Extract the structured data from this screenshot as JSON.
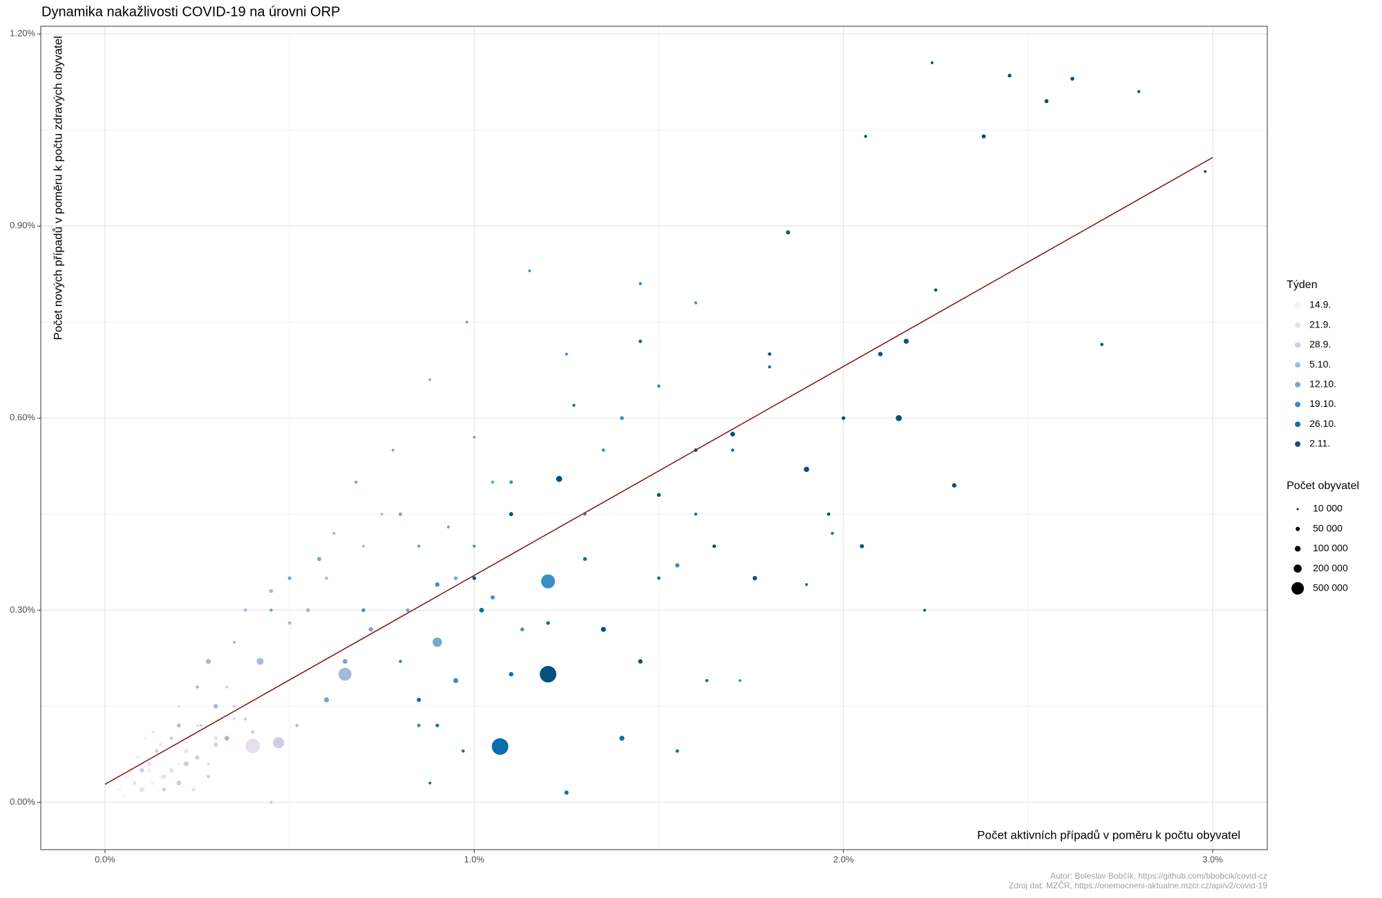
{
  "chart_data": {
    "type": "scatter",
    "title": "Dynamika nakažlivosti COVID-19 na úrovni ORP",
    "x_label": "Počet aktivních případů v poměru k počtu obyvatel",
    "y_label": "Počet nových případů v poměru k počtu zdravých obyvatel",
    "caption": [
      "Autor: Boleslav Bobčík, https://github.com/bbobcik/covid-cz",
      "Zdroj dat: MZČR, https://onemocneni-aktualne.mzcr.cz/api/v2/covid-19"
    ],
    "xlim": [
      -0.174,
      3.148
    ],
    "ylim": [
      -0.074,
      1.212
    ],
    "xticks": [
      {
        "value": 0,
        "label": "0.0%"
      },
      {
        "value": 1,
        "label": "1.0%"
      },
      {
        "value": 2,
        "label": "2.0%"
      },
      {
        "value": 3,
        "label": "3.0%"
      }
    ],
    "yticks": [
      {
        "value": 0,
        "label": "0.00%"
      },
      {
        "value": 0.3,
        "label": "0.30%"
      },
      {
        "value": 0.6,
        "label": "0.60%"
      },
      {
        "value": 0.9,
        "label": "0.90%"
      },
      {
        "value": 1.2,
        "label": "1.20%"
      }
    ],
    "minor_xticks": [
      0.5,
      1.5,
      2.5
    ],
    "minor_yticks": [
      0.15,
      0.45,
      0.75,
      1.05
    ],
    "grid": true,
    "legend_title": "Týden",
    "size_legend": {
      "title": "Počet obyvatel",
      "values": [
        {
          "value": 10000,
          "label": "10 000"
        },
        {
          "value": 50000,
          "label": "50 000"
        },
        {
          "value": 100000,
          "label": "100 000"
        },
        {
          "value": 200000,
          "label": "200 000"
        },
        {
          "value": 500000,
          "label": "500 000"
        }
      ]
    },
    "trend": {
      "color": "#8b1a1a",
      "x": [
        0,
        3.0
      ],
      "y": [
        0.028,
        1.007
      ]
    },
    "series": [
      {
        "name": "14.9.",
        "color": "#f7f0f8",
        "x": [
          0.04,
          0.06,
          0.08,
          0.1,
          0.12,
          0.14,
          0.05,
          0.09,
          0.15,
          0.18,
          0.07,
          0.11,
          0.2,
          0.13
        ],
        "values": [
          0.02,
          0.04,
          0.03,
          0.06,
          0.05,
          0.08,
          0.01,
          0.07,
          0.04,
          0.09,
          0.05,
          0.1,
          0.06,
          0.03
        ],
        "sizes": [
          12000,
          20000,
          8000,
          15000,
          30000,
          10000,
          9000,
          25000,
          14000,
          11000,
          40000,
          16000,
          13000,
          22000
        ]
      },
      {
        "name": "21.9.",
        "color": "#e6e0ee",
        "x": [
          0.08,
          0.12,
          0.15,
          0.18,
          0.22,
          0.25,
          0.3,
          0.1,
          0.2,
          0.28,
          0.35,
          0.16,
          0.4,
          0.24,
          0.13
        ],
        "values": [
          0.03,
          0.06,
          0.09,
          0.05,
          0.08,
          0.12,
          0.1,
          0.02,
          0.15,
          0.06,
          0.13,
          0.04,
          0.088,
          0.02,
          0.11
        ],
        "sizes": [
          15000,
          25000,
          12000,
          30000,
          18000,
          10000,
          22000,
          40000,
          14000,
          16000,
          12000,
          35000,
          380000,
          20000,
          11000
        ]
      },
      {
        "name": "28.9.",
        "color": "#cfcce4",
        "x": [
          0.1,
          0.14,
          0.18,
          0.22,
          0.26,
          0.3,
          0.35,
          0.4,
          0.45,
          0.47,
          0.2,
          0.28,
          0.33,
          0.16,
          0.38,
          0.25
        ],
        "values": [
          0.05,
          0.08,
          0.1,
          0.06,
          0.12,
          0.09,
          0.15,
          0.11,
          0.0,
          0.093,
          0.03,
          0.04,
          0.18,
          0.02,
          0.13,
          0.07
        ],
        "sizes": [
          30000,
          20000,
          15000,
          40000,
          12000,
          25000,
          10000,
          18000,
          14000,
          220000,
          35000,
          16000,
          11000,
          20000,
          13000,
          28000
        ]
      },
      {
        "name": "5.10.",
        "color": "#a7b9d9",
        "x": [
          0.2,
          0.25,
          0.3,
          0.35,
          0.42,
          0.5,
          0.55,
          0.6,
          0.65,
          0.7,
          0.38,
          0.45,
          0.28,
          0.52,
          0.75,
          0.33,
          0.62
        ],
        "values": [
          0.12,
          0.18,
          0.15,
          0.25,
          0.22,
          0.28,
          0.3,
          0.35,
          0.2,
          0.4,
          0.3,
          0.33,
          0.22,
          0.12,
          0.45,
          0.1,
          0.42
        ],
        "sizes": [
          20000,
          15000,
          30000,
          12000,
          80000,
          18000,
          25000,
          14000,
          300000,
          11000,
          16000,
          22000,
          40000,
          13000,
          10000,
          35000,
          12000
        ]
      },
      {
        "name": "12.10.",
        "color": "#77a6cf",
        "x": [
          0.45,
          0.5,
          0.6,
          0.68,
          0.72,
          0.8,
          0.85,
          0.9,
          0.95,
          1.0,
          1.05,
          0.78,
          0.88,
          0.58,
          0.98,
          0.65,
          0.82,
          0.93
        ],
        "values": [
          0.3,
          0.35,
          0.16,
          0.5,
          0.27,
          0.45,
          0.4,
          0.25,
          0.35,
          0.57,
          0.5,
          0.55,
          0.66,
          0.38,
          0.75,
          0.22,
          0.3,
          0.43
        ],
        "sizes": [
          15000,
          20000,
          40000,
          12000,
          30000,
          18000,
          14000,
          150000,
          22000,
          11000,
          16000,
          10000,
          9000,
          25000,
          10000,
          35000,
          20000,
          13000
        ]
      },
      {
        "name": "19.10.",
        "color": "#3a8fc2",
        "x": [
          0.7,
          0.8,
          0.9,
          1.0,
          1.05,
          1.1,
          1.15,
          1.2,
          1.3,
          1.4,
          1.5,
          1.6,
          0.95,
          1.13,
          1.25,
          1.45,
          1.72,
          0.85,
          1.35,
          1.55
        ],
        "values": [
          0.3,
          0.22,
          0.34,
          0.4,
          0.32,
          0.5,
          0.83,
          0.345,
          0.45,
          0.6,
          0.65,
          0.78,
          0.19,
          0.27,
          0.7,
          0.81,
          0.19,
          0.12,
          0.55,
          0.37
        ],
        "sizes": [
          20000,
          15000,
          30000,
          12000,
          25000,
          18000,
          9000,
          350000,
          14000,
          22000,
          16000,
          12000,
          40000,
          20000,
          11000,
          13000,
          10000,
          18000,
          15000,
          28000
        ]
      },
      {
        "name": "26.10.",
        "color": "#0a6eae",
        "x": [
          0.85,
          0.9,
          0.97,
          1.07,
          1.1,
          1.2,
          1.25,
          1.3,
          1.4,
          1.5,
          1.6,
          1.7,
          1.8,
          1.9,
          1.45,
          1.02,
          1.27,
          0.88,
          1.63,
          1.97,
          1.55
        ],
        "values": [
          0.16,
          0.12,
          0.08,
          0.087,
          0.2,
          0.28,
          0.015,
          0.38,
          0.1,
          0.35,
          0.45,
          0.55,
          0.68,
          0.34,
          0.72,
          0.3,
          0.62,
          0.03,
          0.19,
          0.42,
          0.08
        ],
        "sizes": [
          25000,
          18000,
          14000,
          500000,
          30000,
          20000,
          25000,
          22000,
          40000,
          16000,
          12000,
          15000,
          13000,
          11000,
          18000,
          35000,
          12000,
          10000,
          14000,
          12000,
          16000
        ]
      },
      {
        "name": "2.11.",
        "color": "#07507e",
        "x": [
          1.0,
          1.1,
          1.2,
          1.23,
          1.35,
          1.45,
          1.5,
          1.6,
          1.7,
          1.8,
          1.9,
          2.0,
          2.05,
          2.1,
          2.15,
          2.25,
          2.3,
          2.38,
          2.45,
          2.55,
          2.62,
          2.7,
          2.8,
          2.98,
          1.65,
          1.85,
          1.96,
          2.17,
          2.22,
          2.06,
          1.76,
          2.24
        ],
        "values": [
          0.35,
          0.45,
          0.2,
          0.505,
          0.27,
          0.22,
          0.48,
          0.55,
          0.575,
          0.7,
          0.52,
          0.6,
          0.4,
          0.7,
          0.6,
          0.8,
          0.495,
          1.04,
          1.135,
          1.095,
          1.13,
          0.715,
          1.11,
          0.985,
          0.4,
          0.89,
          0.45,
          0.72,
          0.3,
          1.04,
          0.35,
          1.155
        ],
        "sizes": [
          20000,
          25000,
          500000,
          60000,
          40000,
          30000,
          22000,
          18000,
          35000,
          16000,
          45000,
          20000,
          25000,
          30000,
          60000,
          15000,
          30000,
          25000,
          20000,
          25000,
          22000,
          14000,
          12000,
          10000,
          18000,
          25000,
          15000,
          40000,
          10000,
          12000,
          30000,
          10000
        ]
      }
    ]
  }
}
